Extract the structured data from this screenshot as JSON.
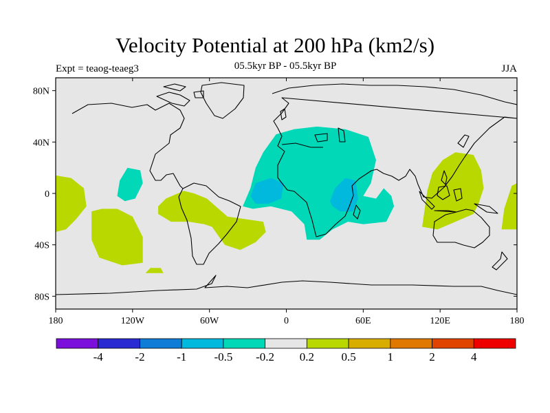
{
  "header": {
    "title": "Velocity Potential at 200 hPa (km2/s)",
    "subtitle": "05.5kyr BP - 05.5kyr BP",
    "expt": "Expt = teaog-teaeg3",
    "season": "JJA"
  },
  "map": {
    "projection": "cylindrical-equidistant",
    "lon_range": [
      -180,
      180
    ],
    "lat_range": [
      -90,
      90
    ],
    "background_color": "#e6e6e6",
    "coastline_color": "#000000",
    "lat_ticks": [
      {
        "value": 80,
        "label": "80N"
      },
      {
        "value": 40,
        "label": "40N"
      },
      {
        "value": 0,
        "label": "0"
      },
      {
        "value": -40,
        "label": "40S"
      },
      {
        "value": -80,
        "label": "80S"
      }
    ],
    "lon_ticks": [
      {
        "value": -180,
        "label": "180"
      },
      {
        "value": -120,
        "label": "120W"
      },
      {
        "value": -60,
        "label": "60W"
      },
      {
        "value": 0,
        "label": "0"
      },
      {
        "value": 60,
        "label": "60E"
      },
      {
        "value": 120,
        "label": "120E"
      },
      {
        "value": 180,
        "label": "180"
      }
    ]
  },
  "colorbar": {
    "colors": [
      "#7b10dc",
      "#2a2ad2",
      "#0f7dd7",
      "#00b9dc",
      "#00d8b8",
      "#e6e6e6",
      "#b8d800",
      "#d9ac00",
      "#e07800",
      "#e04200",
      "#ee0000"
    ],
    "labels": [
      "-4",
      "-2",
      "-1",
      "-0.5",
      "-0.2",
      "0.2",
      "0.5",
      "1",
      "2",
      "4"
    ]
  },
  "chart_data": {
    "type": "heatmap",
    "title": "Velocity Potential at 200 hPa (km2/s)",
    "subtitle": "05.5kyr BP - 05.5kyr BP",
    "variable": "velocity potential",
    "level": "200 hPa",
    "units": "km2/s",
    "season": "JJA",
    "levels": [
      -4,
      -2,
      -1,
      -0.5,
      -0.2,
      0.2,
      0.5,
      1,
      2,
      4
    ],
    "regions": [
      {
        "name": "africa-middle-east-negative",
        "range": [
          -0.5,
          -0.2
        ],
        "lonlat": [
          [
            -34,
            -10
          ],
          [
            -28,
            4
          ],
          [
            -24,
            20
          ],
          [
            -18,
            32
          ],
          [
            -8,
            46
          ],
          [
            6,
            50
          ],
          [
            24,
            52
          ],
          [
            46,
            50
          ],
          [
            64,
            44
          ],
          [
            70,
            26
          ],
          [
            66,
            8
          ],
          [
            60,
            -2
          ],
          [
            70,
            -4
          ],
          [
            76,
            4
          ],
          [
            82,
            -2
          ],
          [
            84,
            -10
          ],
          [
            78,
            -22
          ],
          [
            60,
            -24
          ],
          [
            48,
            -22
          ],
          [
            36,
            -28
          ],
          [
            26,
            -36
          ],
          [
            16,
            -36
          ],
          [
            14,
            -24
          ],
          [
            4,
            -14
          ],
          [
            -12,
            -10
          ],
          [
            -26,
            -12
          ]
        ]
      },
      {
        "name": "west-africa-negative-core",
        "range": [
          -1,
          -0.5
        ],
        "lonlat": [
          [
            -28,
            -2
          ],
          [
            -24,
            8
          ],
          [
            -12,
            12
          ],
          [
            -2,
            8
          ],
          [
            -4,
            -4
          ],
          [
            -14,
            -8
          ],
          [
            -24,
            -8
          ]
        ]
      },
      {
        "name": "east-africa-negative-core",
        "range": [
          -1,
          -0.5
        ],
        "lonlat": [
          [
            34,
            -6
          ],
          [
            38,
            4
          ],
          [
            46,
            12
          ],
          [
            54,
            10
          ],
          [
            56,
            -4
          ],
          [
            52,
            -14
          ],
          [
            42,
            -14
          ],
          [
            36,
            -10
          ]
        ]
      },
      {
        "name": "central-pacific-negative",
        "range": [
          -0.5,
          -0.2
        ],
        "lonlat": [
          [
            -132,
            -2
          ],
          [
            -130,
            10
          ],
          [
            -124,
            20
          ],
          [
            -114,
            18
          ],
          [
            -112,
            8
          ],
          [
            -118,
            -4
          ],
          [
            -126,
            -6
          ]
        ]
      },
      {
        "name": "maritime-continent-positive",
        "range": [
          0.2,
          0.5
        ],
        "lonlat": [
          [
            106,
            -26
          ],
          [
            108,
            -12
          ],
          [
            110,
            2
          ],
          [
            114,
            16
          ],
          [
            122,
            26
          ],
          [
            132,
            32
          ],
          [
            146,
            30
          ],
          [
            152,
            18
          ],
          [
            154,
            4
          ],
          [
            150,
            -8
          ],
          [
            146,
            -16
          ],
          [
            132,
            -22
          ],
          [
            118,
            -28
          ]
        ]
      },
      {
        "name": "dateline-west-positive",
        "range": [
          0.2,
          0.5
        ],
        "lonlat": [
          [
            -180,
            -30
          ],
          [
            -180,
            14
          ],
          [
            -168,
            12
          ],
          [
            -158,
            4
          ],
          [
            -156,
            -10
          ],
          [
            -164,
            -20
          ],
          [
            -172,
            -28
          ]
        ]
      },
      {
        "name": "dateline-east-positive",
        "range": [
          0.2,
          0.5
        ],
        "lonlat": [
          [
            168,
            -28
          ],
          [
            170,
            -12
          ],
          [
            176,
            6
          ],
          [
            180,
            8
          ],
          [
            180,
            -28
          ]
        ]
      },
      {
        "name": "south-pacific-positive",
        "range": [
          0.2,
          0.5
        ],
        "lonlat": [
          [
            -152,
            -14
          ],
          [
            -152,
            -36
          ],
          [
            -146,
            -50
          ],
          [
            -128,
            -56
          ],
          [
            -112,
            -54
          ],
          [
            -112,
            -34
          ],
          [
            -120,
            -18
          ],
          [
            -132,
            -12
          ],
          [
            -144,
            -12
          ]
        ]
      },
      {
        "name": "southeast-pacific-positive",
        "range": [
          0.2,
          0.5
        ],
        "lonlat": [
          [
            -100,
            -10
          ],
          [
            -94,
            -4
          ],
          [
            -80,
            2
          ],
          [
            -72,
            0
          ],
          [
            -62,
            -4
          ],
          [
            -46,
            -18
          ],
          [
            -18,
            -22
          ],
          [
            -16,
            -30
          ],
          [
            -24,
            -38
          ],
          [
            -36,
            -44
          ],
          [
            -48,
            -40
          ],
          [
            -58,
            -26
          ],
          [
            -64,
            -24
          ],
          [
            -76,
            -22
          ],
          [
            -90,
            -22
          ],
          [
            -100,
            -16
          ]
        ]
      },
      {
        "name": "southern-ocean-positive-patch",
        "range": [
          0.2,
          0.5
        ],
        "lonlat": [
          [
            -110,
            -62
          ],
          [
            -106,
            -58
          ],
          [
            -98,
            -58
          ],
          [
            -96,
            -62
          ]
        ]
      }
    ]
  }
}
